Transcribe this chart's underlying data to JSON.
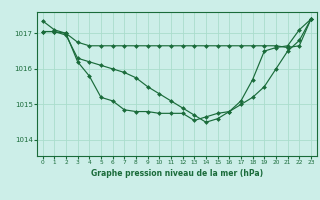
{
  "title": "Graphe pression niveau de la mer (hPa)",
  "bg_color": "#cceee8",
  "plot_bg_color": "#cceee8",
  "grid_color": "#aaddcc",
  "line_color": "#1a6b3a",
  "marker_color": "#1a6b3a",
  "ylim": [
    1013.55,
    1017.6
  ],
  "yticks": [
    1014,
    1015,
    1016,
    1017
  ],
  "xlim": [
    -0.5,
    23.5
  ],
  "xticks": [
    0,
    1,
    2,
    3,
    4,
    5,
    6,
    7,
    8,
    9,
    10,
    11,
    12,
    13,
    14,
    15,
    16,
    17,
    18,
    19,
    20,
    21,
    22,
    23
  ],
  "xtick_labels": [
    "0",
    "1",
    "2",
    "3",
    "4",
    "5",
    "6",
    "7",
    "8",
    "9",
    "10",
    "11",
    "12",
    "13",
    "14",
    "15",
    "16",
    "17",
    "18",
    "19",
    "20",
    "21",
    "22",
    "23"
  ],
  "series": [
    [
      1017.35,
      1017.1,
      1017.0,
      1016.2,
      1015.8,
      1015.2,
      1015.1,
      1014.85,
      1014.8,
      1014.8,
      1014.75,
      1014.75,
      1014.75,
      1014.55,
      1014.65,
      1014.75,
      1014.8,
      1015.1,
      1015.7,
      1016.5,
      1016.6,
      1016.65,
      1017.1,
      1017.4
    ],
    [
      1017.05,
      1017.05,
      1017.0,
      1016.75,
      1016.65,
      1016.65,
      1016.65,
      1016.65,
      1016.65,
      1016.65,
      1016.65,
      1016.65,
      1016.65,
      1016.65,
      1016.65,
      1016.65,
      1016.65,
      1016.65,
      1016.65,
      1016.65,
      1016.65,
      1016.6,
      1016.65,
      1017.4
    ],
    [
      1017.05,
      1017.05,
      1016.95,
      1016.3,
      1016.2,
      1016.1,
      1016.0,
      1015.9,
      1015.75,
      1015.5,
      1015.3,
      1015.1,
      1014.9,
      1014.7,
      1014.5,
      1014.6,
      1014.8,
      1015.0,
      1015.2,
      1015.5,
      1016.0,
      1016.5,
      1016.8,
      1017.4
    ]
  ]
}
